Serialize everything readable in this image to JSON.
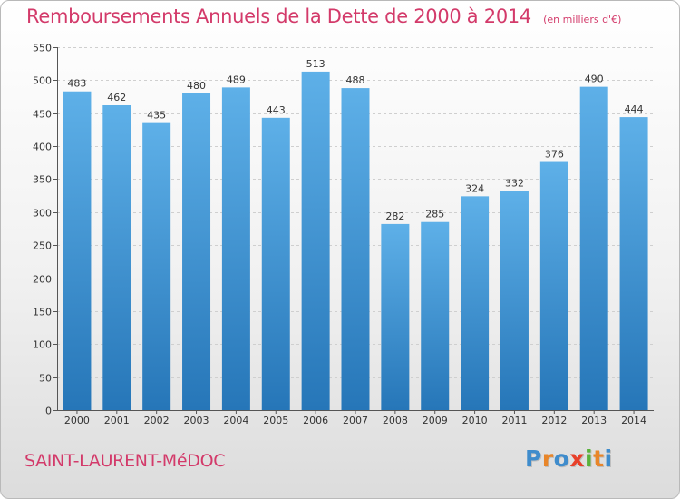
{
  "chart_data": {
    "type": "bar",
    "title": "Remboursements Annuels de la Dette de 2000 à 2014",
    "subtitle": "(en milliers d'€)",
    "categories": [
      "2000",
      "2001",
      "2002",
      "2003",
      "2004",
      "2005",
      "2006",
      "2007",
      "2008",
      "2009",
      "2010",
      "2011",
      "2012",
      "2013",
      "2014"
    ],
    "values": [
      483,
      462,
      435,
      480,
      489,
      443,
      513,
      488,
      282,
      285,
      324,
      332,
      376,
      490,
      444
    ],
    "ylim": [
      0,
      550
    ],
    "yticks": [
      0,
      50,
      100,
      150,
      200,
      250,
      300,
      350,
      400,
      450,
      500,
      550
    ],
    "grid": true,
    "bar_color_top": "#5eb0e8",
    "bar_color_bottom": "#2676b8"
  },
  "footer": {
    "commune": "SAINT-LAURENT-MéDOC",
    "logo": [
      "P",
      "r",
      "o",
      "x",
      "i",
      "t",
      "i"
    ]
  }
}
